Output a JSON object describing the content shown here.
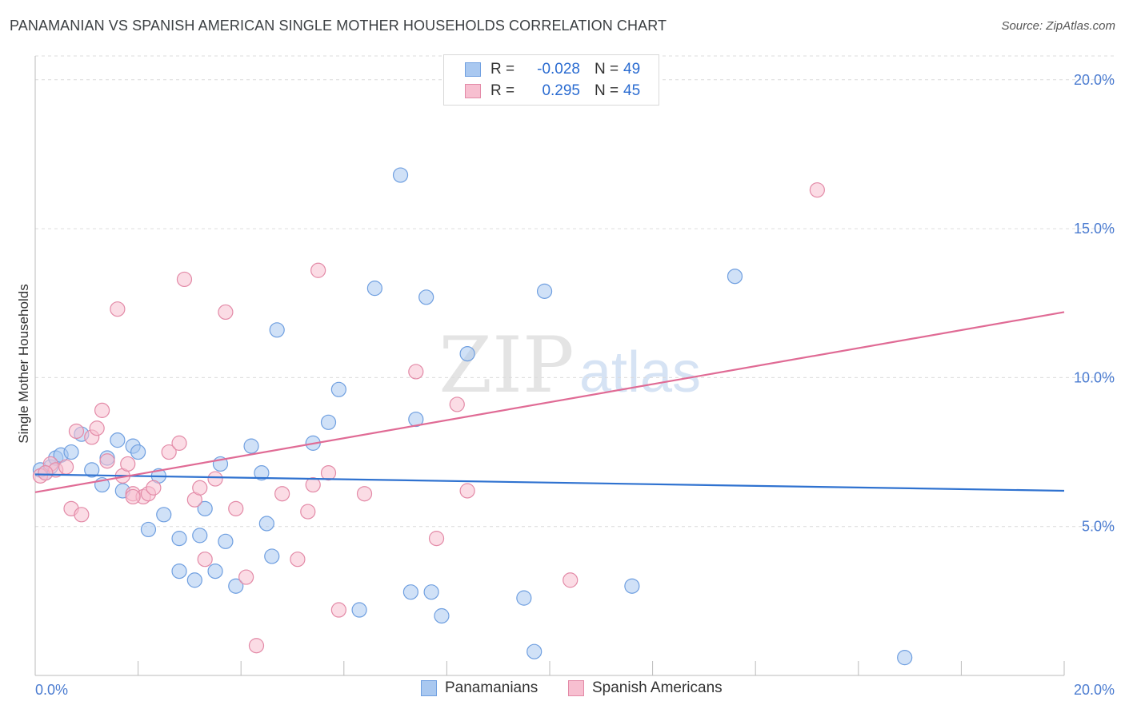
{
  "header": {
    "title": "PANAMANIAN VS SPANISH AMERICAN SINGLE MOTHER HOUSEHOLDS CORRELATION CHART",
    "source": "Source: ZipAtlas.com"
  },
  "watermark": {
    "zip": "ZIP",
    "atlas": "atlas"
  },
  "legend": {
    "rows": [
      {
        "r_label": "R =",
        "r_value": "-0.028",
        "n_label": "N =",
        "n_value": "49",
        "color": "#a9c8f0",
        "stroke": "#6f9fe0"
      },
      {
        "r_label": "R =",
        "r_value": "0.295",
        "n_label": "N =",
        "n_value": "45",
        "color": "#f7bfd0",
        "stroke": "#e38aa7"
      }
    ]
  },
  "chart_data": {
    "type": "scatter",
    "title": "PANAMANIAN VS SPANISH AMERICAN SINGLE MOTHER HOUSEHOLDS CORRELATION CHART",
    "xlabel": "",
    "ylabel": "Single Mother Households",
    "xlim": [
      0,
      20
    ],
    "ylim": [
      0,
      20.8
    ],
    "x_tick_labels": [
      "0.0%",
      "20.0%"
    ],
    "y_ticks": [
      5,
      10,
      15,
      20
    ],
    "y_tick_labels": [
      "5.0%",
      "10.0%",
      "15.0%",
      "20.0%"
    ],
    "grid": true,
    "series": [
      {
        "name": "Panamanians",
        "color": "#a9c8f0",
        "stroke": "#6f9fe0",
        "trend_color": "#2f72d0",
        "trend": {
          "x0": 0,
          "y0": 6.75,
          "x1": 20,
          "y1": 6.2
        },
        "points": [
          [
            0.2,
            6.8
          ],
          [
            0.3,
            7.0
          ],
          [
            0.4,
            7.3
          ],
          [
            0.5,
            7.4
          ],
          [
            0.7,
            7.5
          ],
          [
            0.9,
            8.1
          ],
          [
            1.1,
            6.9
          ],
          [
            1.3,
            6.4
          ],
          [
            1.4,
            7.3
          ],
          [
            1.6,
            7.9
          ],
          [
            1.7,
            6.2
          ],
          [
            1.9,
            7.7
          ],
          [
            2.0,
            7.5
          ],
          [
            2.2,
            4.9
          ],
          [
            2.4,
            6.7
          ],
          [
            2.5,
            5.4
          ],
          [
            2.8,
            3.5
          ],
          [
            2.8,
            4.6
          ],
          [
            3.1,
            3.2
          ],
          [
            3.2,
            4.7
          ],
          [
            3.3,
            5.6
          ],
          [
            3.5,
            3.5
          ],
          [
            3.6,
            7.1
          ],
          [
            3.7,
            4.5
          ],
          [
            3.9,
            3.0
          ],
          [
            4.2,
            7.7
          ],
          [
            4.4,
            6.8
          ],
          [
            4.5,
            5.1
          ],
          [
            4.6,
            4.0
          ],
          [
            4.7,
            11.6
          ],
          [
            5.4,
            7.8
          ],
          [
            5.7,
            8.5
          ],
          [
            5.9,
            9.6
          ],
          [
            6.3,
            2.2
          ],
          [
            6.6,
            13.0
          ],
          [
            7.1,
            16.8
          ],
          [
            7.3,
            2.8
          ],
          [
            7.4,
            8.6
          ],
          [
            7.6,
            12.7
          ],
          [
            7.7,
            2.8
          ],
          [
            7.9,
            2.0
          ],
          [
            8.4,
            10.8
          ],
          [
            9.5,
            2.6
          ],
          [
            9.7,
            0.8
          ],
          [
            9.9,
            12.9
          ],
          [
            11.6,
            3.0
          ],
          [
            13.6,
            13.4
          ],
          [
            16.9,
            0.6
          ],
          [
            0.1,
            6.9
          ]
        ]
      },
      {
        "name": "Spanish Americans",
        "color": "#f7bfd0",
        "stroke": "#e38aa7",
        "trend_color": "#e06b95",
        "trend": {
          "x0": 0,
          "y0": 6.15,
          "x1": 20,
          "y1": 12.2
        },
        "points": [
          [
            0.1,
            6.7
          ],
          [
            0.3,
            7.1
          ],
          [
            0.4,
            6.9
          ],
          [
            0.6,
            7.0
          ],
          [
            0.7,
            5.6
          ],
          [
            0.8,
            8.2
          ],
          [
            0.9,
            5.4
          ],
          [
            1.1,
            8.0
          ],
          [
            1.2,
            8.3
          ],
          [
            1.3,
            8.9
          ],
          [
            1.4,
            7.2
          ],
          [
            1.6,
            12.3
          ],
          [
            1.7,
            6.7
          ],
          [
            1.8,
            7.1
          ],
          [
            1.9,
            6.1
          ],
          [
            2.1,
            6.0
          ],
          [
            2.2,
            6.1
          ],
          [
            2.3,
            6.3
          ],
          [
            2.6,
            7.5
          ],
          [
            2.8,
            7.8
          ],
          [
            2.9,
            13.3
          ],
          [
            3.1,
            5.9
          ],
          [
            3.2,
            6.3
          ],
          [
            3.3,
            3.9
          ],
          [
            3.5,
            6.6
          ],
          [
            3.7,
            12.2
          ],
          [
            3.9,
            5.6
          ],
          [
            4.1,
            3.3
          ],
          [
            4.3,
            1.0
          ],
          [
            4.8,
            6.1
          ],
          [
            5.1,
            3.9
          ],
          [
            5.3,
            5.5
          ],
          [
            5.4,
            6.4
          ],
          [
            5.5,
            13.6
          ],
          [
            5.7,
            6.8
          ],
          [
            5.9,
            2.2
          ],
          [
            6.4,
            6.1
          ],
          [
            7.4,
            10.2
          ],
          [
            7.8,
            4.6
          ],
          [
            8.2,
            9.1
          ],
          [
            8.4,
            6.2
          ],
          [
            10.4,
            3.2
          ],
          [
            15.2,
            16.3
          ],
          [
            0.2,
            6.8
          ],
          [
            1.9,
            6.0
          ]
        ]
      }
    ]
  }
}
